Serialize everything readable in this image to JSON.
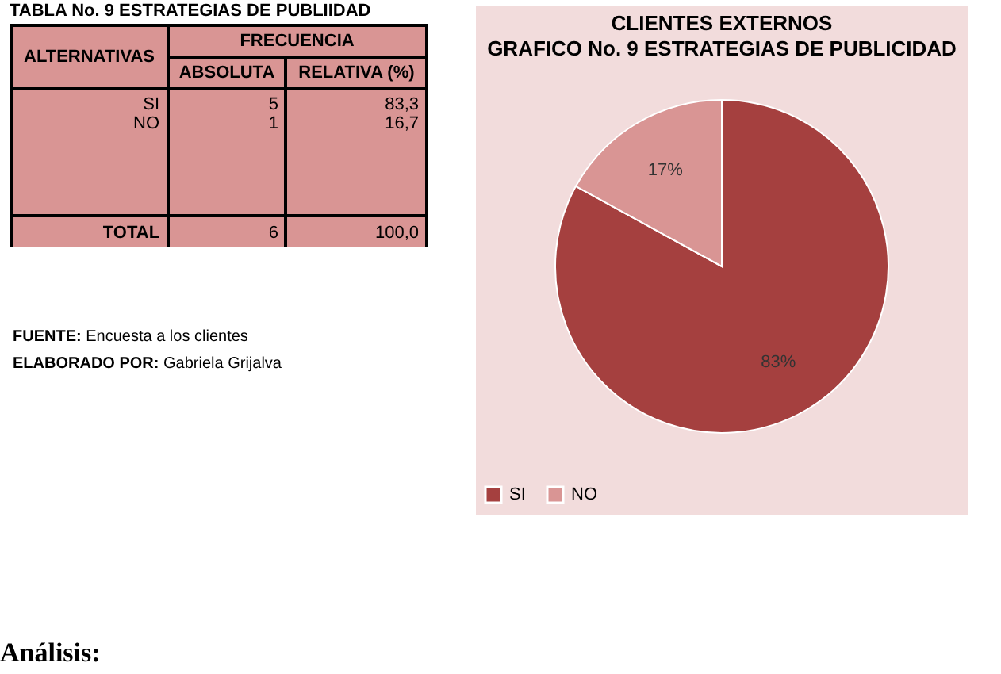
{
  "chart_data": {
    "type": "pie",
    "title": "CLIENTES EXTERNOS",
    "subtitle": "GRAFICO No. 9 ESTRATEGIAS DE PUBLICIDAD",
    "categories": [
      "SI",
      "NO"
    ],
    "values": [
      83,
      17
    ],
    "colors": [
      "#a5403f",
      "#d99594"
    ],
    "value_labels": [
      "83%",
      "17%"
    ],
    "legend": "bottom",
    "annotations": [
      "TABLA No. 9 ESTRATEGIAS DE PUBLIIDAD",
      "ALTERNATIVAS",
      "FRECUENCIA",
      "ABSOLUTA",
      "RELATIVA (%)",
      "SI",
      "5",
      "83,3",
      "NO",
      "1",
      "16,7",
      "TOTAL",
      "6",
      "100,0",
      "FUENTE: Encuesta a los clientes",
      "ELABORADO POR: Gabriela Grijalva",
      "Análisis:"
    ]
  }
}
